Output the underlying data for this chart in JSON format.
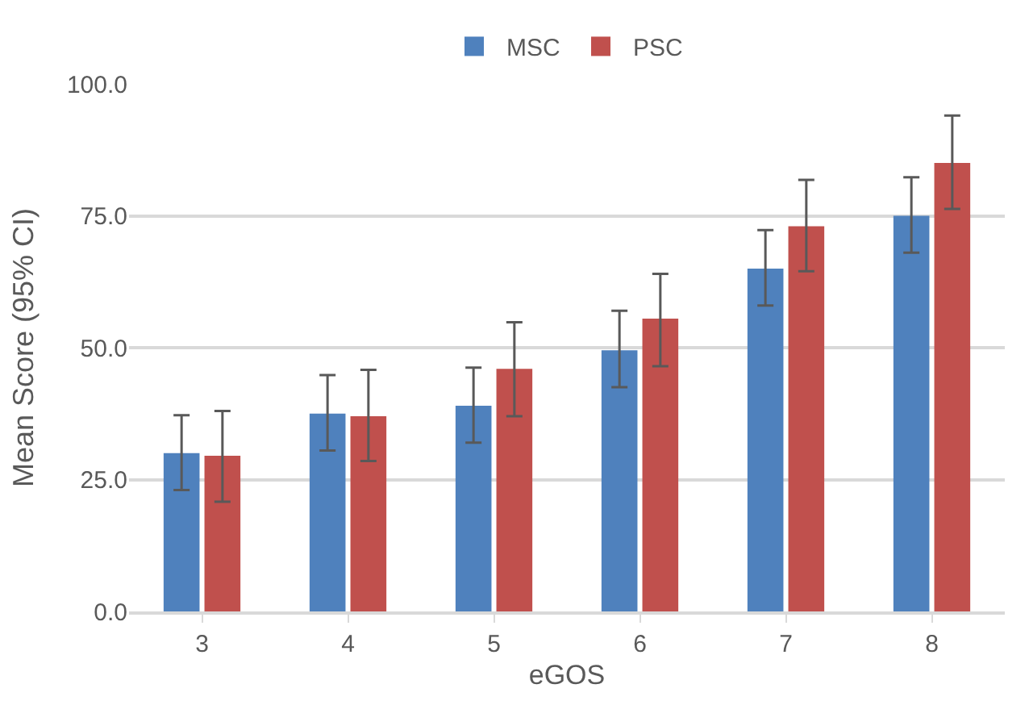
{
  "chart_data": {
    "type": "bar",
    "xlabel": "eGOS",
    "ylabel": "Mean Score (95% CI)",
    "categories": [
      "3",
      "4",
      "5",
      "6",
      "7",
      "8"
    ],
    "series": [
      {
        "name": "MSC",
        "color": "#4f81bd",
        "values": [
          30,
          37.5,
          39,
          49.5,
          65,
          75
        ],
        "errors": [
          [
            23,
            37.2
          ],
          [
            30.5,
            44.8
          ],
          [
            32,
            46.2
          ],
          [
            42.5,
            57
          ],
          [
            58,
            72.3
          ],
          [
            68,
            82.3
          ]
        ]
      },
      {
        "name": "PSC",
        "color": "#c0504d",
        "values": [
          29.5,
          37,
          46,
          55.5,
          73,
          85
        ],
        "errors": [
          [
            20.8,
            38
          ],
          [
            28.5,
            45.8
          ],
          [
            37,
            54.8
          ],
          [
            46.5,
            64
          ],
          [
            64.5,
            81.8
          ],
          [
            76.3,
            94
          ]
        ]
      }
    ],
    "ylim": [
      0,
      100
    ],
    "yticks": [
      {
        "value": 0,
        "label": "0.0"
      },
      {
        "value": 25,
        "label": "25.0"
      },
      {
        "value": 50,
        "label": "50.0"
      },
      {
        "value": 75,
        "label": "75.0"
      },
      {
        "value": 100,
        "label": "100.0"
      }
    ],
    "grid": "y",
    "legend": "top"
  }
}
